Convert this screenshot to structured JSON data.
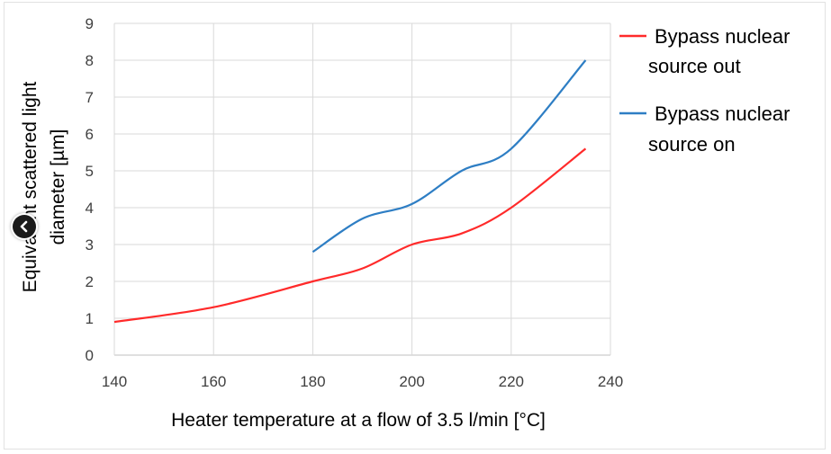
{
  "chart_data": {
    "type": "line",
    "xlabel": "Heater temperature at a flow of 3.5 l/min [°C]",
    "ylabel_line1": "Equivalent scattered light",
    "ylabel_line2": "diameter [µm]",
    "xlim": [
      140,
      240
    ],
    "ylim": [
      0,
      9
    ],
    "x_ticks": [
      140,
      160,
      180,
      200,
      220,
      240
    ],
    "y_ticks": [
      0,
      1,
      2,
      3,
      4,
      5,
      6,
      7,
      8,
      9
    ],
    "grid": true,
    "legend_position": "right",
    "series": [
      {
        "name_line1": "Bypass nuclear",
        "name_line2": "source out",
        "color": "#ff2a2a",
        "x": [
          140,
          160,
          180,
          190,
          200,
          210,
          220,
          235
        ],
        "y": [
          0.9,
          1.3,
          2.0,
          2.35,
          3.0,
          3.3,
          4.0,
          5.6
        ]
      },
      {
        "name_line1": "Bypass nuclear",
        "name_line2": "source on",
        "color": "#2e7ec4",
        "x": [
          180,
          190,
          200,
          210,
          220,
          235
        ],
        "y": [
          2.8,
          3.7,
          4.1,
          5.0,
          5.6,
          8.0
        ]
      }
    ]
  },
  "ui": {
    "nav_icon": "chevron-left-icon"
  }
}
